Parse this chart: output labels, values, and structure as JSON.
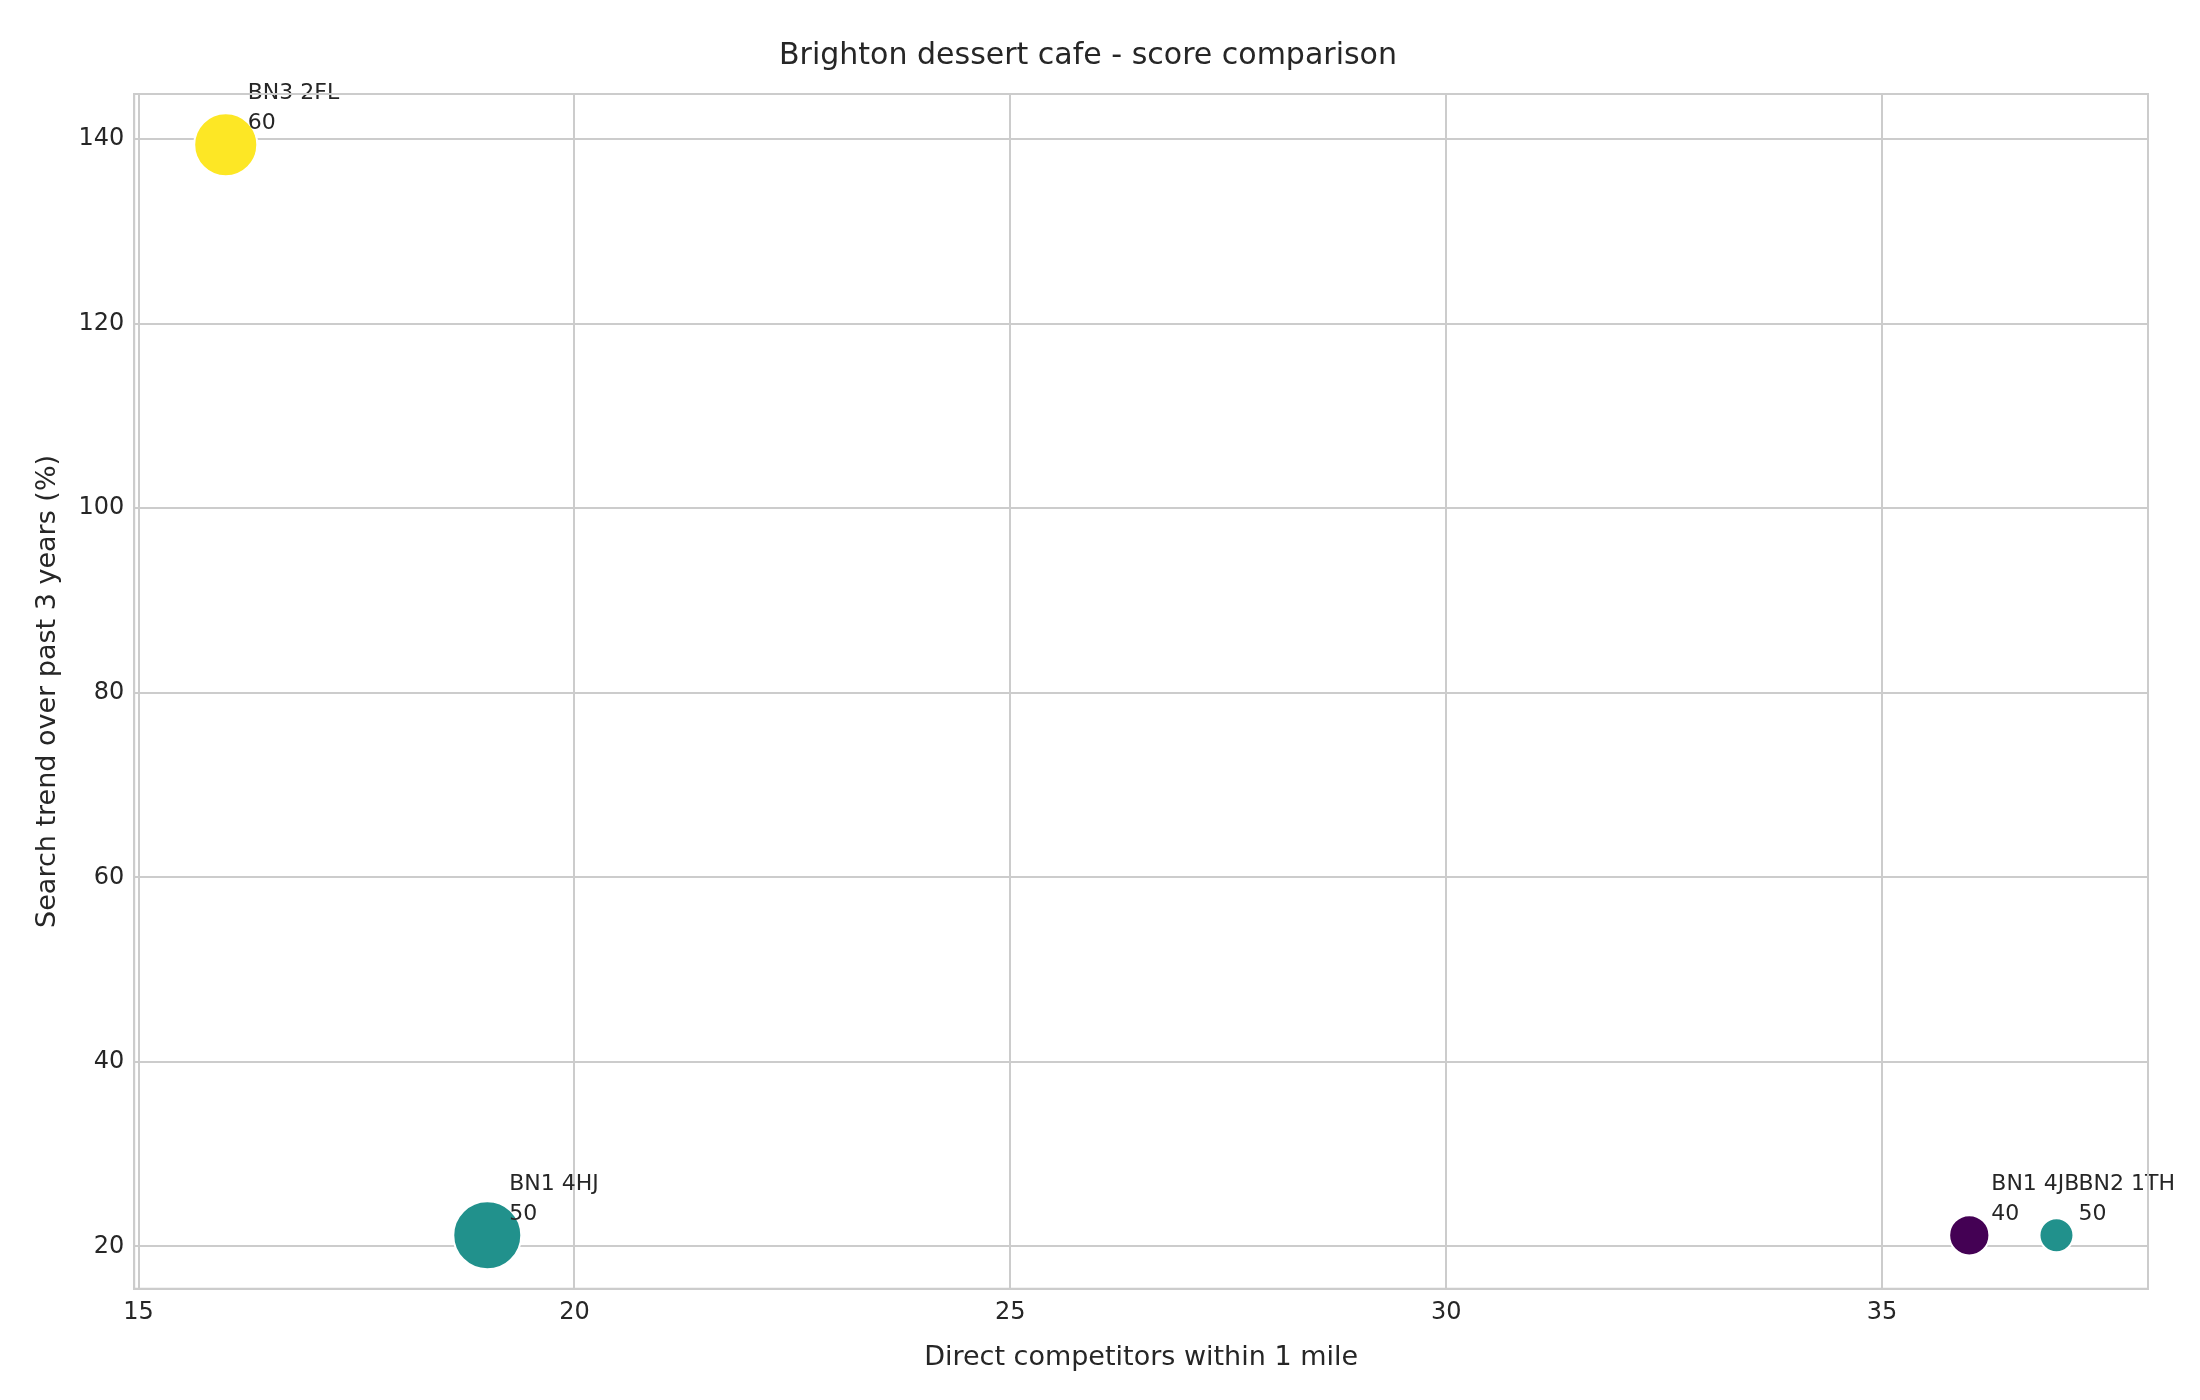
{
  "chart_data": {
    "type": "bubble",
    "title": "Brighton dessert cafe - score comparison",
    "xlabel": "Direct competitors within 1 mile",
    "ylabel": "Search trend over past 3 years (%)",
    "x": [
      16,
      19,
      36,
      37
    ],
    "values": [
      139.4,
      21.2,
      21.2,
      21.2
    ],
    "sizes": [
      0.86,
      1,
      0.35,
      0.25
    ],
    "colors": [
      "#fde725",
      "#21918c",
      "#440154",
      "#21918c"
    ],
    "xlim": [
      14.95,
      38.05
    ],
    "xticks": [
      15,
      20,
      25,
      30,
      35
    ],
    "ylim": [
      15.4,
      144.9
    ],
    "yticks": [
      20,
      40,
      60,
      80,
      100,
      120,
      140
    ],
    "grid": true,
    "legend": false,
    "marker": "circle",
    "annotations": [
      {
        "text": "BN3 2FL\n60",
        "x": 16,
        "y": 139.4
      },
      {
        "text": "BN1 4HJ\n50",
        "x": 19,
        "y": 21.2
      },
      {
        "text": "BN1 4JB\n40",
        "x": 36,
        "y": 21.2
      },
      {
        "text": "BN2 1TH\n50",
        "x": 37,
        "y": 21.2
      }
    ]
  }
}
